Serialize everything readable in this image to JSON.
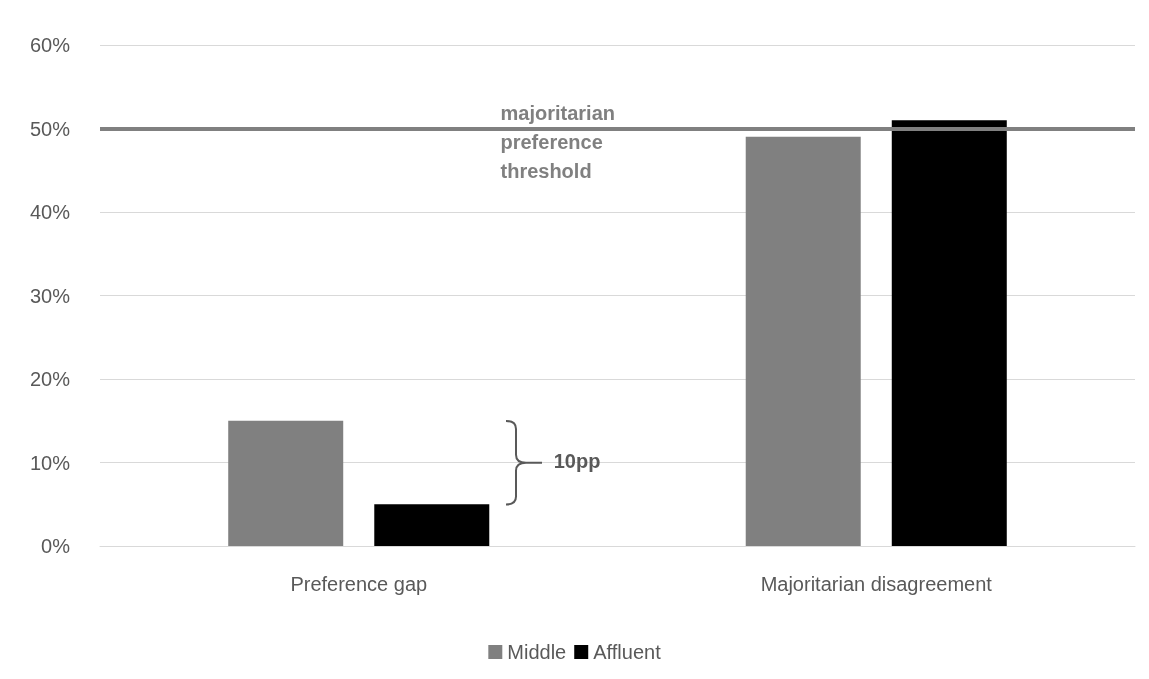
{
  "chart_data": {
    "type": "bar",
    "categories": [
      "Preference gap",
      "Majoritarian disagreement"
    ],
    "series": [
      {
        "name": "Middle",
        "color": "#808080",
        "values": [
          15,
          49
        ]
      },
      {
        "name": "Affluent",
        "color": "#000000",
        "values": [
          5,
          51
        ]
      }
    ],
    "ylim": [
      0,
      60
    ],
    "yticks": [
      {
        "value": 0,
        "label": "0%"
      },
      {
        "value": 10,
        "label": "10%"
      },
      {
        "value": 20,
        "label": "20%"
      },
      {
        "value": 30,
        "label": "30%"
      },
      {
        "value": 40,
        "label": "40%"
      },
      {
        "value": 50,
        "label": "50%"
      },
      {
        "value": 60,
        "label": "60%"
      }
    ],
    "ref_lines": [
      {
        "axis": "y",
        "value": 50,
        "label": "majoritarian preference threshold",
        "color": "#808080"
      }
    ],
    "annotations": [
      "10pp"
    ],
    "grid": "y",
    "legend": "bottom"
  }
}
